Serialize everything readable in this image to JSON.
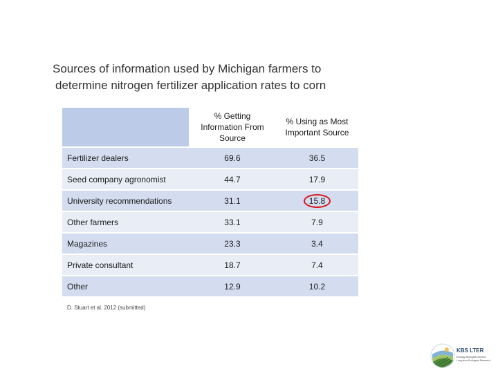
{
  "title": {
    "line1": "Sources of information used by Michigan farmers to",
    "line2": "determine nitrogen fertilizer application rates to corn"
  },
  "table": {
    "headers": {
      "col1": "% Getting Information From Source",
      "col2": "% Using as Most Important Source"
    },
    "rows": [
      {
        "source": "Fertilizer dealers",
        "getting": "69.6",
        "most_important": "36.5"
      },
      {
        "source": "Seed company agronomist",
        "getting": "44.7",
        "most_important": "17.9"
      },
      {
        "source": "University recommendations",
        "getting": "31.1",
        "most_important": "15.8",
        "highlighted": true
      },
      {
        "source": "Other farmers",
        "getting": "33.1",
        "most_important": "7.9"
      },
      {
        "source": "Magazines",
        "getting": "23.3",
        "most_important": "3.4"
      },
      {
        "source": "Private consultant",
        "getting": "18.7",
        "most_important": "7.4"
      },
      {
        "source": "Other",
        "getting": "12.9",
        "most_important": "10.2"
      }
    ]
  },
  "citation": "D. Stuart et al. 2012 (submitted)",
  "logo": {
    "title": "KBS LTER",
    "subtitle_lines": [
      "Ecology, Biological Science",
      "Long-term Ecological Research",
      ""
    ]
  },
  "colors": {
    "header_corner": "#bccbe7",
    "row_odd": "#d4ddef",
    "row_even": "#e9edf6",
    "highlight_circle": "#d9151b"
  }
}
